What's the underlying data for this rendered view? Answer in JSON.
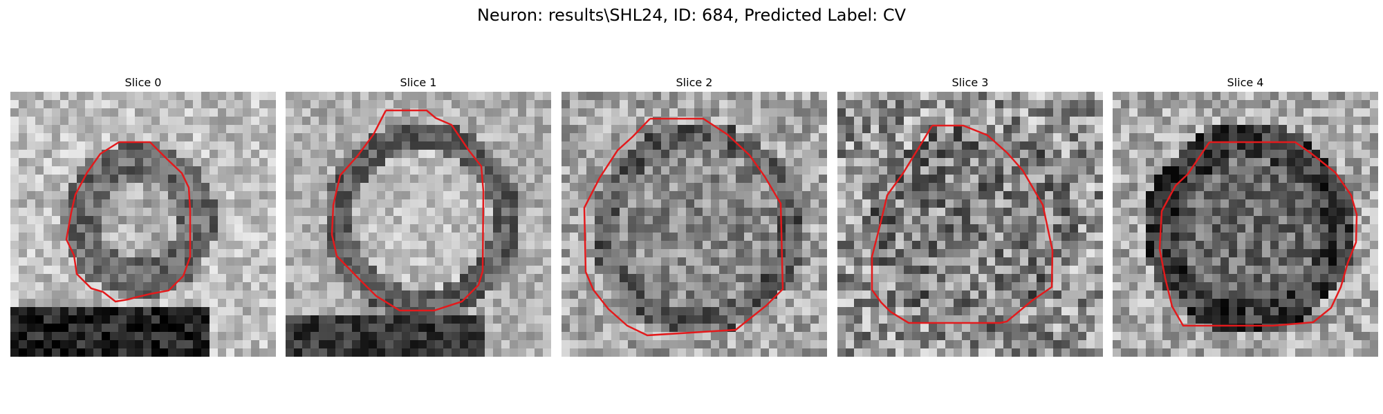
{
  "figure": {
    "title": "Neuron: results\\SHL24, ID: 684, Predicted Label: CV",
    "contour_color": "#e31a1c",
    "colormap": "gray"
  },
  "panels": [
    {
      "title": "Slice 0"
    },
    {
      "title": "Slice 1"
    },
    {
      "title": "Slice 2"
    },
    {
      "title": "Slice 3"
    },
    {
      "title": "Slice 4"
    }
  ]
}
